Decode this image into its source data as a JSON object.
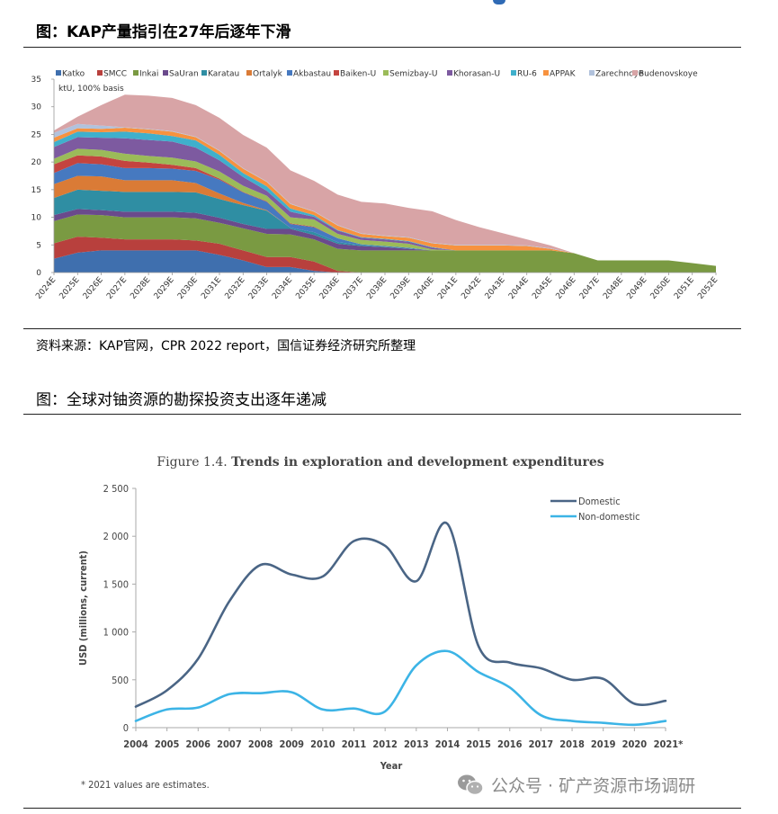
{
  "section1": {
    "title": "图：KAP产量指引在27年后逐年下滑",
    "source": "资料来源：KAP官网，CPR 2022 report，国信证券经济研究所整理"
  },
  "section2": {
    "title": "图：全球对铀资源的勘探投资支出逐年递减"
  },
  "watermark": {
    "icon": "wechat-icon",
    "text": "公众号 · 矿产资源市场调研"
  },
  "chart_data": [
    {
      "type": "area",
      "stacked": true,
      "unit_label": "ktU, 100% basis",
      "ylim": [
        0,
        35
      ],
      "yticks": [
        "0",
        "5",
        "10",
        "15",
        "20",
        "25",
        "30",
        "35"
      ],
      "legend_position": "top",
      "grid": false,
      "categories": [
        "2024E",
        "2025E",
        "2026E",
        "2027E",
        "2028E",
        "2029E",
        "2030E",
        "2031E",
        "2032E",
        "2033E",
        "2034E",
        "2035E",
        "2036E",
        "2037E",
        "2038E",
        "2039E",
        "2040E",
        "2041E",
        "2042E",
        "2043E",
        "2044E",
        "2045E",
        "2046E",
        "2047E",
        "2048E",
        "2049E",
        "2050E",
        "2051E",
        "2052E"
      ],
      "series": [
        {
          "name": "Katko",
          "color": "#3f6fae",
          "values": [
            2.5,
            3.6,
            4,
            4,
            4,
            4,
            4,
            3.2,
            2.2,
            1,
            1,
            0.3,
            0,
            0,
            0,
            0,
            0,
            0,
            0,
            0,
            0,
            0,
            0,
            0,
            0,
            0,
            0,
            0,
            0
          ]
        },
        {
          "name": "SMCC",
          "color": "#b8403d",
          "values": [
            2.8,
            2.9,
            2.3,
            2,
            2,
            2,
            1.8,
            2,
            1.8,
            1.8,
            1.8,
            1.7,
            0.3,
            0,
            0,
            0,
            0,
            0,
            0,
            0,
            0,
            0,
            0,
            0,
            0,
            0,
            0,
            0,
            0
          ]
        },
        {
          "name": "Inkai",
          "color": "#7a9a42",
          "values": [
            4,
            4,
            4.1,
            4,
            4,
            4,
            4,
            3.8,
            4,
            4.2,
            4.1,
            4,
            4,
            4,
            4,
            4,
            4,
            4,
            4,
            4,
            4,
            4,
            3.5,
            2.2,
            2.2,
            2.2,
            2.2,
            1.7,
            1.2
          ]
        },
        {
          "name": "SaUran",
          "color": "#6a4a8c",
          "values": [
            1.1,
            1,
            0.9,
            1,
            1,
            1,
            1,
            0.9,
            0.8,
            0.9,
            1,
            0.8,
            0.9,
            0.8,
            0.6,
            0.3,
            0,
            0,
            0,
            0,
            0,
            0,
            0,
            0,
            0,
            0,
            0,
            0,
            0
          ]
        },
        {
          "name": "Karatau",
          "color": "#2f8ea3",
          "values": [
            3.1,
            3.5,
            3.5,
            3.6,
            3.6,
            3.6,
            3.7,
            3.4,
            3.4,
            3.3,
            0.2,
            0.5,
            0.3,
            0.2,
            0.1,
            0.1,
            0,
            0,
            0,
            0,
            0,
            0,
            0,
            0,
            0,
            0,
            0,
            0,
            0
          ]
        },
        {
          "name": "Ortalyk",
          "color": "#da7b36",
          "values": [
            2.5,
            2.5,
            2.6,
            2.1,
            2.1,
            2.1,
            1.7,
            1,
            0.4,
            0.1,
            0,
            0,
            0,
            0,
            0,
            0,
            0,
            0,
            0,
            0,
            0,
            0,
            0,
            0,
            0,
            0,
            0,
            0,
            0
          ]
        },
        {
          "name": "Akbastau",
          "color": "#4679c0",
          "values": [
            2,
            2.3,
            2.2,
            2.2,
            2.2,
            2.1,
            2.2,
            2.5,
            1.9,
            1.5,
            0.7,
            0.9,
            0.7,
            0.1,
            0.1,
            0.1,
            0,
            0,
            0,
            0,
            0,
            0,
            0,
            0,
            0,
            0,
            0,
            0,
            0
          ]
        },
        {
          "name": "Baiken-U",
          "color": "#c4443f",
          "values": [
            1.6,
            1.4,
            1.4,
            1.3,
            1,
            0.7,
            0.5,
            0.2,
            0.1,
            0.1,
            0.1,
            0.1,
            0,
            0,
            0,
            0,
            0,
            0,
            0,
            0,
            0,
            0,
            0,
            0,
            0,
            0,
            0,
            0,
            0
          ]
        },
        {
          "name": "Semizbay-U",
          "color": "#9bbb59",
          "values": [
            1,
            1.2,
            1.2,
            1.3,
            1.2,
            1.3,
            1.2,
            1.3,
            1.1,
            1,
            1.1,
            1.3,
            0.8,
            0.8,
            0.8,
            0.7,
            0.2,
            0,
            0,
            0,
            0,
            0,
            0,
            0,
            0,
            0,
            0,
            0,
            0
          ]
        },
        {
          "name": "Khorasan-U",
          "color": "#7d5aa0",
          "values": [
            2.1,
            2.1,
            2.2,
            2.8,
            2.9,
            2.9,
            2.5,
            2,
            1.6,
            0.9,
            1,
            0.5,
            0.6,
            0.4,
            0.4,
            0.4,
            0.3,
            0,
            0,
            0,
            0,
            0,
            0,
            0,
            0,
            0,
            0,
            0,
            0
          ]
        },
        {
          "name": "RU-6",
          "color": "#3fb0cc",
          "values": [
            0.9,
            1,
            1,
            1.2,
            1.2,
            1,
            1.3,
            1,
            0.7,
            0.8,
            0.6,
            0.3,
            0.1,
            0.1,
            0.1,
            0.1,
            0.1,
            0,
            0,
            0,
            0,
            0,
            0,
            0,
            0,
            0,
            0,
            0,
            0
          ]
        },
        {
          "name": "APPAK",
          "color": "#f7923f",
          "values": [
            0.8,
            0.6,
            0.6,
            0.7,
            0.7,
            0.8,
            0.6,
            0.7,
            0.8,
            0.8,
            0.8,
            0.6,
            0.8,
            0.6,
            0.5,
            0.6,
            0.7,
            0.9,
            0.9,
            0.9,
            0.8,
            0.3,
            0,
            0,
            0,
            0,
            0,
            0,
            0
          ]
        },
        {
          "name": "Zarechnoye",
          "color": "#b1c2dc",
          "values": [
            0.9,
            0.8,
            0.6,
            0.1,
            0.1,
            0.1,
            0.1,
            0.1,
            0.1,
            0.1,
            0.1,
            0.1,
            0.1,
            0.1,
            0.1,
            0.1,
            0.1,
            0.1,
            0.1,
            0.1,
            0.1,
            0.1,
            0,
            0,
            0,
            0,
            0,
            0,
            0
          ]
        },
        {
          "name": "Budenovskoye",
          "color": "#d8a4a6",
          "values": [
            0.4,
            1.3,
            3.7,
            5.9,
            6,
            6,
            5.7,
            5.9,
            6,
            6.1,
            6,
            5.5,
            5.5,
            5.7,
            5.8,
            5.3,
            5.7,
            4.5,
            3.2,
            2.1,
            1.1,
            0.5,
            0,
            0,
            0,
            0,
            0,
            0,
            0
          ]
        }
      ]
    },
    {
      "type": "line",
      "title_prefix": "Figure 1.4.",
      "title": "Trends in exploration and development expenditures",
      "xlabel": "Year",
      "ylabel": "USD (millions, current)",
      "ylim": [
        0,
        2500
      ],
      "yticks": [
        "0",
        "500",
        "1 000",
        "1 500",
        "2 000",
        "2 500"
      ],
      "categories": [
        "2004",
        "2005",
        "2006",
        "2007",
        "2008",
        "2009",
        "2010",
        "2011",
        "2012",
        "2013",
        "2014",
        "2015",
        "2016",
        "2017",
        "2018",
        "2019",
        "2020",
        "2021*"
      ],
      "legend_position": "top-right",
      "grid": false,
      "footnote": "* 2021 values are estimates.",
      "series": [
        {
          "name": "Domestic",
          "color": "#4a6585",
          "values": [
            220,
            390,
            720,
            1320,
            1700,
            1600,
            1580,
            1950,
            1900,
            1530,
            2130,
            850,
            680,
            620,
            500,
            510,
            250,
            280
          ]
        },
        {
          "name": "Non-domestic",
          "color": "#3cb4e6",
          "values": [
            70,
            190,
            210,
            350,
            360,
            370,
            190,
            200,
            170,
            650,
            800,
            580,
            420,
            130,
            70,
            50,
            30,
            70
          ]
        }
      ]
    }
  ]
}
